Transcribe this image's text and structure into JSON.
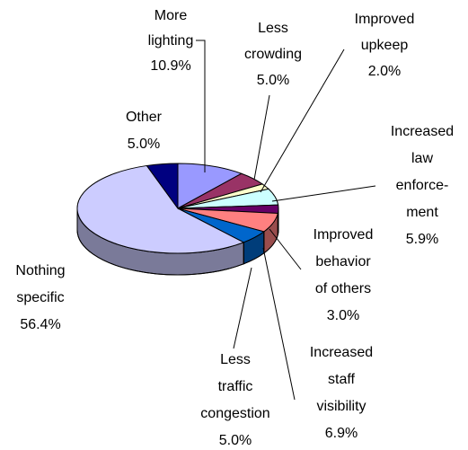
{
  "chart_data": {
    "type": "pie3d",
    "categories": [
      "More\nlighting",
      "Less\ncrowding",
      "Improved\nupkeep",
      "Increased\nlaw\nenforce-\nment",
      "Improved\nbehavior\nof others",
      "Increased\nstaff\nvisibility",
      "Less\ntraffic\ncongestion",
      "Nothing\nspecific",
      "Other"
    ],
    "values": [
      10.9,
      5.0,
      2.0,
      5.9,
      3.0,
      6.9,
      5.0,
      56.4,
      5.0
    ],
    "value_labels": [
      "10.9%",
      "5.0%",
      "2.0%",
      "5.9%",
      "3.0%",
      "6.9%",
      "5.0%",
      "56.4%",
      "5.0%"
    ],
    "colors": [
      "#9999ff",
      "#993366",
      "#ffffcc",
      "#ccffff",
      "#660066",
      "#ff8080",
      "#0066cc",
      "#ccccff",
      "#000080"
    ]
  }
}
